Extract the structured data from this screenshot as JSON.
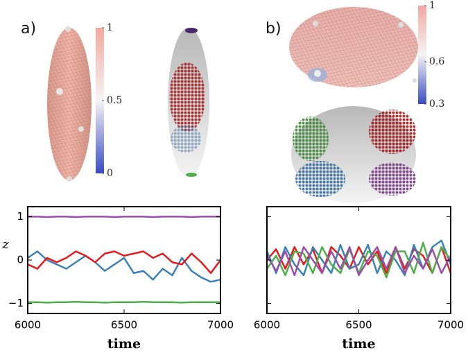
{
  "chart_data": [
    {
      "type": "colorbar",
      "panel": "a)",
      "colors": [
        "#3b4cc0",
        "#f4f4f4",
        "#f2a8a0"
      ],
      "ylim": [
        0,
        1
      ],
      "yticks": [
        1,
        0.5,
        0
      ]
    },
    {
      "type": "line",
      "xlabel": "time",
      "ylabel": "z",
      "show_ytick_labels": true,
      "x": [
        6000,
        6050,
        6100,
        6150,
        6200,
        6250,
        6300,
        6350,
        6400,
        6450,
        6500,
        6550,
        6600,
        6650,
        6700,
        6750,
        6800,
        6850,
        6900,
        6950,
        7000
      ],
      "xlim": [
        6000,
        7000
      ],
      "xticks": [
        6000,
        6500,
        7000
      ],
      "ylim": [
        -1.23,
        1.23
      ],
      "yticks": [
        1,
        0,
        {
          "value": -1,
          "label": "−1"
        }
      ],
      "series": [
        {
          "color": "#9a4fa8",
          "values": [
            1.0,
            1.0,
            0.99,
            1.0,
            1.0,
            0.99,
            1.0,
            1.0,
            1.0,
            0.99,
            1.0,
            1.0,
            1.0,
            0.99,
            1.0,
            1.0,
            1.0,
            0.99,
            1.0,
            1.0,
            1.0
          ]
        },
        {
          "color": "#4daf4a",
          "values": [
            -0.97,
            -0.97,
            -0.98,
            -0.97,
            -0.97,
            -0.96,
            -0.97,
            -0.97,
            -0.98,
            -0.97,
            -0.97,
            -0.97,
            -0.96,
            -0.97,
            -0.97,
            -0.97,
            -0.98,
            -0.97,
            -0.97,
            -0.97,
            -0.97
          ]
        },
        {
          "color": "#3a80b9",
          "values": [
            0.05,
            0.2,
            0.0,
            -0.1,
            -0.2,
            -0.05,
            0.1,
            -0.05,
            -0.25,
            -0.1,
            0.05,
            -0.3,
            -0.25,
            -0.45,
            -0.2,
            -0.35,
            0.05,
            -0.25,
            -0.4,
            -0.5,
            -0.45
          ]
        },
        {
          "color": "#e41a1c",
          "values": [
            -0.1,
            -0.2,
            0.05,
            -0.05,
            0.05,
            0.2,
            0.1,
            -0.05,
            0.15,
            0.2,
            0.1,
            0.15,
            0.2,
            0.05,
            0.15,
            -0.05,
            -0.1,
            0.15,
            -0.05,
            -0.3,
            0.0
          ]
        }
      ]
    },
    {
      "type": "colorbar",
      "panel": "b)",
      "colors": [
        "#3b4cc0",
        "#f4f4f4",
        "#f2a8a0"
      ],
      "ylim": [
        0.3,
        1
      ],
      "yticks": [
        1,
        0.6,
        0.3
      ]
    },
    {
      "type": "line",
      "xlabel": "time",
      "show_ytick_labels": false,
      "x": [
        6000,
        6050,
        6100,
        6150,
        6200,
        6250,
        6300,
        6350,
        6400,
        6450,
        6500,
        6550,
        6600,
        6650,
        6700,
        6750,
        6800,
        6850,
        6900,
        6950,
        7000
      ],
      "xlim": [
        6000,
        7000
      ],
      "xticks": [
        6000,
        6500,
        7000
      ],
      "ylim": [
        -1.23,
        1.23
      ],
      "yticks": [
        1,
        0,
        -1
      ],
      "series": [
        {
          "color": "#e41a1c",
          "values": [
            0.0,
            0.25,
            -0.2,
            0.3,
            -0.1,
            0.25,
            -0.3,
            0.3,
            0.1,
            -0.2,
            0.3,
            -0.1,
            0.2,
            -0.3,
            0.3,
            -0.2,
            0.25,
            0.1,
            -0.3,
            0.3,
            -0.3
          ]
        },
        {
          "color": "#3a80b9",
          "values": [
            0.2,
            -0.3,
            0.3,
            -0.1,
            -0.35,
            0.3,
            0.0,
            -0.3,
            0.35,
            -0.2,
            -0.1,
            0.35,
            -0.3,
            0.2,
            0.0,
            -0.35,
            0.35,
            -0.2,
            0.3,
            0.45,
            -0.1
          ]
        },
        {
          "color": "#4daf4a",
          "values": [
            -0.2,
            0.1,
            -0.35,
            0.2,
            0.15,
            -0.3,
            0.3,
            -0.1,
            -0.3,
            0.25,
            -0.3,
            0.2,
            0.1,
            -0.4,
            0.2,
            0.2,
            -0.3,
            0.4,
            -0.3,
            0.3,
            0.0
          ]
        },
        {
          "color": "#9a4fa8",
          "values": [
            0.1,
            -0.25,
            0.2,
            -0.35,
            0.3,
            0.0,
            -0.3,
            0.2,
            -0.2,
            0.3,
            -0.35,
            0.0,
            0.3,
            -0.2,
            0.3,
            -0.3,
            0.1,
            -0.2,
            0.25,
            -0.3,
            0.1
          ]
        }
      ]
    }
  ]
}
